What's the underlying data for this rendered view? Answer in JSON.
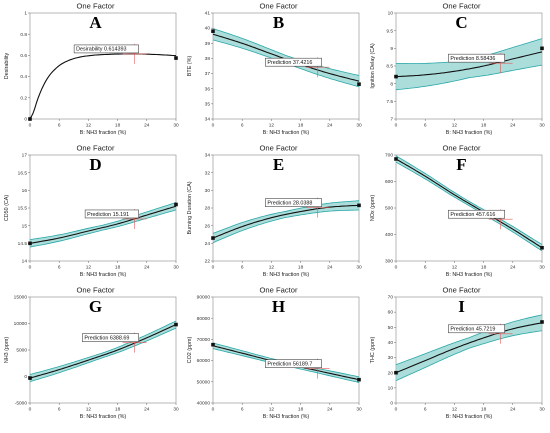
{
  "colors": {
    "band_fill": "#8fd1cf",
    "band_edge": "#2aa7a7",
    "line": "#111111",
    "crosshair": "#e05a5a",
    "point": "#111111"
  },
  "chart_data": [
    {
      "type": "line",
      "title": "One Factor",
      "letter": "A",
      "xlabel": "B: NH3 fraction (%)",
      "ylabel": "Desirability",
      "x": [
        0,
        6,
        12,
        18,
        24,
        30
      ],
      "y": [
        0,
        0.45,
        0.565,
        0.61,
        0.605,
        0.575
      ],
      "band": 0,
      "xlim": [
        0,
        30
      ],
      "ylim": [
        0,
        1
      ],
      "yticks": [
        0,
        0.2,
        0.4,
        0.6,
        0.8,
        1
      ],
      "xticks": [
        0,
        6,
        12,
        18,
        24,
        30
      ],
      "points": [
        {
          "x": 0,
          "y": 0
        },
        {
          "x": 30,
          "y": 0.575
        }
      ],
      "prediction": {
        "label": "Desirability  0.614393",
        "x": 21.5,
        "y": 0.614
      }
    },
    {
      "type": "line",
      "title": "One Factor",
      "letter": "B",
      "xlabel": "B: NH3 fraction (%)",
      "ylabel": "BTE (%)",
      "x": [
        0,
        6,
        12,
        18,
        24,
        30
      ],
      "y": [
        39.6,
        39.0,
        38.3,
        37.6,
        37.0,
        36.5
      ],
      "band": 0.25,
      "xlim": [
        0,
        30
      ],
      "ylim": [
        34,
        41
      ],
      "yticks": [
        34,
        35,
        36,
        37,
        38,
        39,
        40,
        41
      ],
      "xticks": [
        0,
        6,
        12,
        18,
        24,
        30
      ],
      "points": [
        {
          "x": 0,
          "y": 39.8
        },
        {
          "x": 30,
          "y": 36.3
        }
      ],
      "prediction": {
        "label": "Prediction  37.4216",
        "x": 21.5,
        "y": 37.42
      }
    },
    {
      "type": "line",
      "title": "One Factor",
      "letter": "C",
      "xlabel": "B: NH3 fraction (%)",
      "ylabel": "Ignition Delay (CA)",
      "x": [
        0,
        6,
        12,
        18,
        24,
        30
      ],
      "y": [
        8.2,
        8.25,
        8.35,
        8.5,
        8.7,
        8.9
      ],
      "band": 0.25,
      "xlim": [
        0,
        30
      ],
      "ylim": [
        7,
        10
      ],
      "yticks": [
        7,
        7.5,
        8,
        8.5,
        9,
        9.5,
        10
      ],
      "xticks": [
        0,
        6,
        12,
        18,
        24,
        30
      ],
      "points": [
        {
          "x": 0,
          "y": 8.2
        },
        {
          "x": 30,
          "y": 9.0
        }
      ],
      "prediction": {
        "label": "Prediction  8.58436",
        "x": 21.5,
        "y": 8.58
      }
    },
    {
      "type": "line",
      "title": "One Factor",
      "letter": "D",
      "xlabel": "B: NH3 fraction (%)",
      "ylabel": "CD50 (CA)",
      "x": [
        0,
        6,
        12,
        18,
        24,
        30
      ],
      "y": [
        14.5,
        14.65,
        14.85,
        15.05,
        15.3,
        15.55
      ],
      "band": 0.07,
      "xlim": [
        0,
        30
      ],
      "ylim": [
        14,
        17
      ],
      "yticks": [
        14,
        14.5,
        15,
        15.5,
        16,
        16.5,
        17
      ],
      "xticks": [
        0,
        6,
        12,
        18,
        24,
        30
      ],
      "points": [
        {
          "x": 0,
          "y": 14.5
        },
        {
          "x": 30,
          "y": 15.6
        }
      ],
      "prediction": {
        "label": "Prediction  15.191",
        "x": 21.5,
        "y": 15.19
      }
    },
    {
      "type": "line",
      "title": "One Factor",
      "letter": "E",
      "xlabel": "B: NH3 fraction (%)",
      "ylabel": "Burning Duration (CA)",
      "x": [
        0,
        6,
        12,
        18,
        24,
        30
      ],
      "y": [
        24.6,
        25.9,
        26.9,
        27.6,
        28.1,
        28.3
      ],
      "band": 0.35,
      "xlim": [
        0,
        30
      ],
      "ylim": [
        22,
        34
      ],
      "yticks": [
        22,
        24,
        26,
        28,
        30,
        32,
        34
      ],
      "xticks": [
        0,
        6,
        12,
        18,
        24,
        30
      ],
      "points": [
        {
          "x": 0,
          "y": 24.6
        },
        {
          "x": 30,
          "y": 28.3
        }
      ],
      "prediction": {
        "label": "Prediction  28.0388",
        "x": 21.5,
        "y": 28.04
      }
    },
    {
      "type": "line",
      "title": "One Factor",
      "letter": "F",
      "xlabel": "B: NH3 fraction (%)",
      "ylabel": "NOx (ppm)",
      "x": [
        0,
        6,
        12,
        18,
        24,
        30
      ],
      "y": [
        685,
        620,
        550,
        485,
        420,
        350
      ],
      "band": 8,
      "xlim": [
        0,
        30
      ],
      "ylim": [
        300,
        700
      ],
      "yticks": [
        300,
        400,
        500,
        600,
        700
      ],
      "xticks": [
        0,
        6,
        12,
        18,
        24,
        30
      ],
      "points": [
        {
          "x": 0,
          "y": 685
        },
        {
          "x": 30,
          "y": 350
        }
      ],
      "prediction": {
        "label": "Prediction  457.616",
        "x": 21.5,
        "y": 457.6
      }
    },
    {
      "type": "line",
      "title": "One Factor",
      "letter": "G",
      "xlabel": "B: NH3 fraction (%)",
      "ylabel": "NH3 (ppm)",
      "x": [
        0,
        6,
        12,
        18,
        24,
        30
      ],
      "y": [
        -300,
        1300,
        3100,
        5000,
        7300,
        9800
      ],
      "band": 450,
      "xlim": [
        0,
        30
      ],
      "ylim": [
        -5000,
        15000
      ],
      "yticks": [
        -5000,
        0,
        5000,
        10000,
        15000
      ],
      "xticks": [
        0,
        6,
        12,
        18,
        24,
        30
      ],
      "points": [
        {
          "x": 0,
          "y": -300
        },
        {
          "x": 30,
          "y": 9800
        }
      ],
      "prediction": {
        "label": "Prediction  6388.69",
        "x": 21.5,
        "y": 6388.7
      }
    },
    {
      "type": "line",
      "title": "One Factor",
      "letter": "H",
      "xlabel": "B: NH3 fraction (%)",
      "ylabel": "CO2 (ppm)",
      "x": [
        0,
        6,
        12,
        18,
        24,
        30
      ],
      "y": [
        67000,
        63500,
        60000,
        57000,
        54000,
        51000
      ],
      "band": 900,
      "xlim": [
        0,
        30
      ],
      "ylim": [
        40000,
        90000
      ],
      "yticks": [
        40000,
        50000,
        60000,
        70000,
        80000,
        90000
      ],
      "xticks": [
        0,
        6,
        12,
        18,
        24,
        30
      ],
      "points": [
        {
          "x": 0,
          "y": 67500
        },
        {
          "x": 30,
          "y": 51000
        }
      ],
      "prediction": {
        "label": "Prediction  56189.7",
        "x": 21.5,
        "y": 56189.7
      }
    },
    {
      "type": "line",
      "title": "One Factor",
      "letter": "I",
      "xlabel": "B: NH3 fraction (%)",
      "ylabel": "THC (ppm)",
      "x": [
        0,
        6,
        12,
        18,
        24,
        30
      ],
      "y": [
        20,
        28,
        36,
        43,
        49,
        53
      ],
      "band": 3.5,
      "xlim": [
        0,
        30
      ],
      "ylim": [
        0,
        70
      ],
      "yticks": [
        0,
        10,
        20,
        30,
        40,
        50,
        60,
        70
      ],
      "xticks": [
        0,
        6,
        12,
        18,
        24,
        30
      ],
      "points": [
        {
          "x": 0,
          "y": 20
        },
        {
          "x": 30,
          "y": 53.5
        }
      ],
      "prediction": {
        "label": "Prediction  45.7219",
        "x": 21.5,
        "y": 45.72
      }
    }
  ]
}
